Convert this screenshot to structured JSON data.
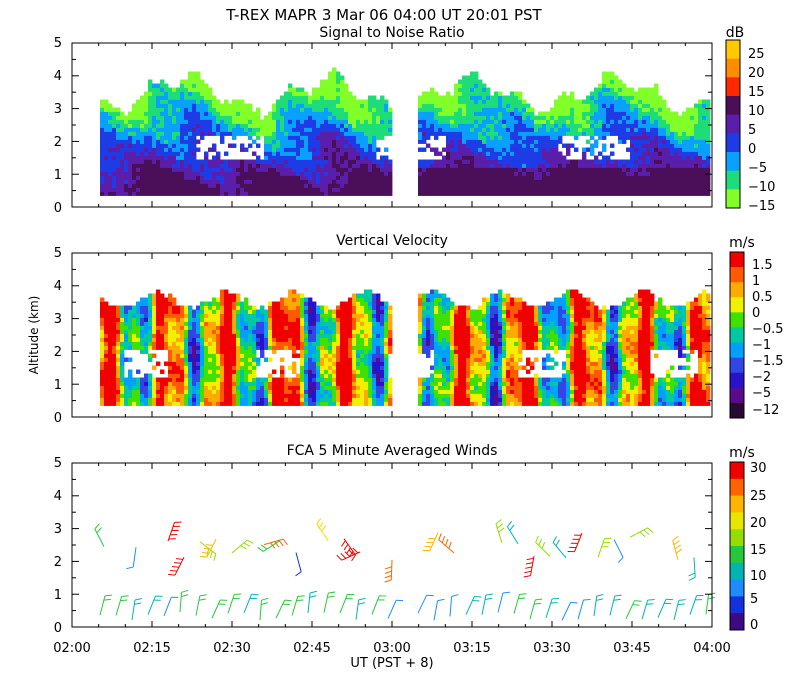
{
  "header": {
    "title": "T-REX   MAPR   3 Mar 06   04:00 UT   20:01   PST"
  },
  "chart_data": [
    {
      "type": "heatmap",
      "title": "Signal to Noise Ratio",
      "ylabel": "",
      "ylim": [
        0,
        5
      ],
      "yticks": [
        "0",
        "1",
        "2",
        "3",
        "4",
        "5"
      ],
      "colorbar": {
        "unit": "dB",
        "labels": [
          "25",
          "20",
          "15",
          "10",
          "5",
          "0",
          "−5",
          "−10",
          "−15"
        ],
        "colors": [
          "#ffc800",
          "#ff8c00",
          "#ff2800",
          "#4b0f5a",
          "#5a1eaa",
          "#1e3ce6",
          "#0aa0ff",
          "#1edc78",
          "#82ff28"
        ]
      }
    },
    {
      "type": "heatmap",
      "title": "Vertical Velocity",
      "ylabel": "Altitude (km)",
      "ylim": [
        0,
        5
      ],
      "yticks": [
        "0",
        "1",
        "2",
        "3",
        "4",
        "5"
      ],
      "colorbar": {
        "unit": "m/s",
        "labels": [
          "1.5",
          "1",
          "0.5",
          "0",
          "−0.5",
          "−1",
          "−1.5",
          "−2",
          "−5",
          "−12"
        ],
        "colors": [
          "#f00000",
          "#ff5a00",
          "#ffaa00",
          "#f0f000",
          "#40e000",
          "#00c8a0",
          "#00a0ff",
          "#3246e6",
          "#2814c8",
          "#5a0a8c",
          "#280a32"
        ]
      }
    },
    {
      "type": "scatter",
      "title": "FCA 5 Minute Averaged Winds",
      "xlabel": "UT  (PST + 8)",
      "ylabel": "",
      "ylim": [
        0,
        5
      ],
      "yticks": [
        "0",
        "1",
        "2",
        "3",
        "4",
        "5"
      ],
      "xticks": [
        "02:00",
        "02:15",
        "02:30",
        "02:45",
        "03:00",
        "03:15",
        "03:30",
        "03:45",
        "04:00"
      ],
      "colorbar": {
        "unit": "m/s",
        "labels": [
          "30",
          "25",
          "20",
          "15",
          "10",
          "5",
          "0"
        ],
        "colors": [
          "#f00000",
          "#ff6400",
          "#ffb400",
          "#e6e600",
          "#96dc00",
          "#28c83c",
          "#00b4b4",
          "#1e8cff",
          "#1432dc",
          "#3c0a82"
        ]
      }
    }
  ]
}
